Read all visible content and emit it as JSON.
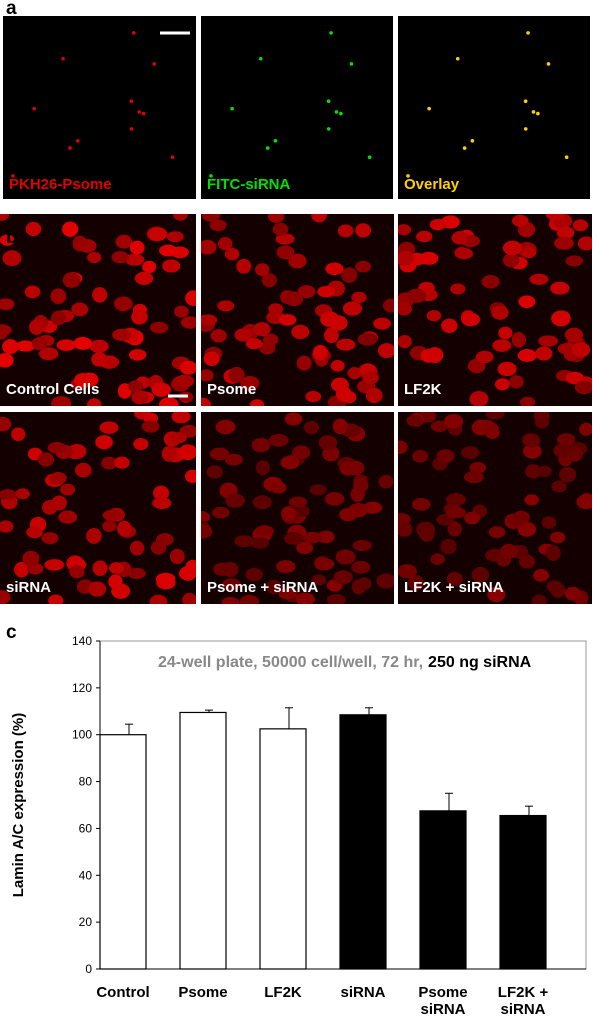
{
  "panel_a": {
    "label": "a",
    "captions": [
      "PKH26-Psome",
      "FITC-siRNA",
      "Overlay"
    ]
  },
  "panel_b": {
    "label": "b",
    "captions": [
      "Control Cells",
      "Psome",
      "LF2K",
      "siRNA",
      "Psome + siRNA",
      "LF2K + siRNA"
    ]
  },
  "panel_c": {
    "label": "c"
  },
  "chart_data": {
    "type": "bar",
    "subtitle": "24-well plate, 50000 cell/well, 72 hr,",
    "subtitle_emphasis": "250 ng siRNA",
    "y_label": "Lamin A/C expression (%)",
    "categories": [
      "Control",
      "Psome",
      "LF2K",
      "siRNA",
      "Psome siRNA",
      "LF2K + siRNA"
    ],
    "values": [
      100,
      109.5,
      102.5,
      108.5,
      67.5,
      65.5
    ],
    "errors": [
      4.5,
      1,
      9,
      3,
      7.5,
      4
    ],
    "colors": [
      "#ffffff",
      "#ffffff",
      "#ffffff",
      "#000000",
      "#000000",
      "#000000"
    ],
    "ylim": [
      0,
      140
    ],
    "yticks": [
      0,
      20,
      40,
      60,
      80,
      100,
      120,
      140
    ]
  }
}
